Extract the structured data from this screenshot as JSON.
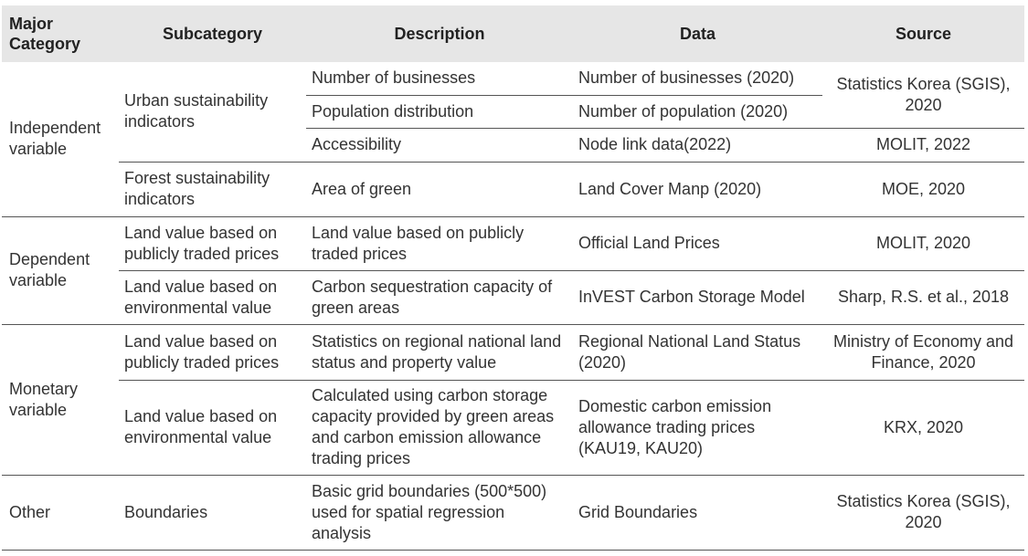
{
  "headers": {
    "major": "Major Category",
    "subcategory": "Subcategory",
    "description": "Description",
    "data": "Data",
    "source": "Source"
  },
  "rows": {
    "independent": {
      "major": "Independent variable",
      "urban_sub": "Urban sustainability indicators",
      "r1": {
        "description": "Number of businesses",
        "data": "Number of businesses (2020)",
        "source": "Statistics Korea (SGIS), 2020"
      },
      "r2": {
        "description": "Population distribution",
        "data": "Number of population (2020)"
      },
      "r3": {
        "description": "Accessibility",
        "data": "Node link data(2022)",
        "source": "MOLIT, 2022"
      },
      "forest_sub": "Forest sustainability indicators",
      "r4": {
        "description": "Area of green",
        "data": "Land Cover Manp (2020)",
        "source": "MOE, 2020"
      }
    },
    "dependent": {
      "major": "Dependent variable",
      "r1": {
        "subcategory": "Land value based on publicly traded prices",
        "description": "Land value based on publicly traded prices",
        "data": "Official Land Prices",
        "source": "MOLIT, 2020"
      },
      "r2": {
        "subcategory": "Land value based on environmental value",
        "description": "Carbon sequestration capacity of green areas",
        "data": "InVEST Carbon Storage Model",
        "source": "Sharp, R.S. et al., 2018"
      }
    },
    "monetary": {
      "major": "Monetary variable",
      "r1": {
        "subcategory": "Land value based on publicly traded prices",
        "description": "Statistics on regional national land status and property value",
        "data": "Regional National Land Status (2020)",
        "source": "Ministry of Economy and Finance, 2020"
      },
      "r2": {
        "subcategory": "Land value based on environmental value",
        "description": "Calculated using carbon storage capacity provided by green areas and carbon emission allowance trading prices",
        "data": "Domestic carbon emission allowance trading prices (KAU19, KAU20)",
        "source": "KRX, 2020"
      }
    },
    "other": {
      "major": "Other",
      "r1": {
        "subcategory": "Boundaries",
        "description": "Basic grid boundaries (500*500) used for spatial regression analysis",
        "data": "Grid Boundaries",
        "source": "Statistics Korea (SGIS), 2020"
      }
    }
  }
}
